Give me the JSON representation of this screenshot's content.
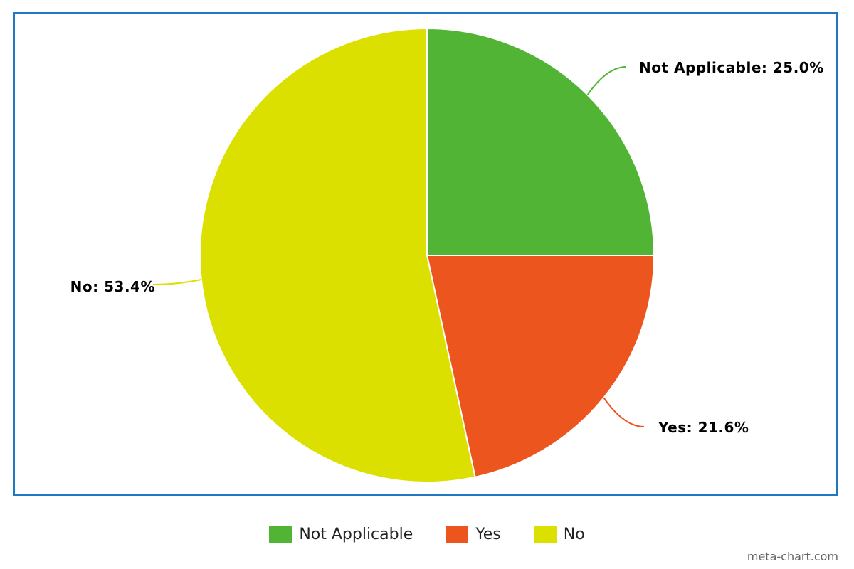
{
  "chart_data": {
    "type": "pie",
    "categories": [
      "Not Applicable",
      "Yes",
      "No"
    ],
    "values": [
      25.0,
      21.6,
      53.4
    ],
    "labels": [
      "Not Applicable: 25.0%",
      "Yes: 21.6%",
      "No: 53.4%"
    ],
    "colors": [
      "#52b434",
      "#ec561e",
      "#dce001"
    ],
    "start_angle": "12 o'clock",
    "direction": "clockwise",
    "legend_position": "bottom",
    "title": ""
  },
  "legend": {
    "items": [
      {
        "label": "Not Applicable",
        "color": "#52b434"
      },
      {
        "label": "Yes",
        "color": "#ec561e"
      },
      {
        "label": "No",
        "color": "#dce001"
      }
    ]
  },
  "watermark": "meta-chart.com",
  "frame_color": "#1f78c1"
}
